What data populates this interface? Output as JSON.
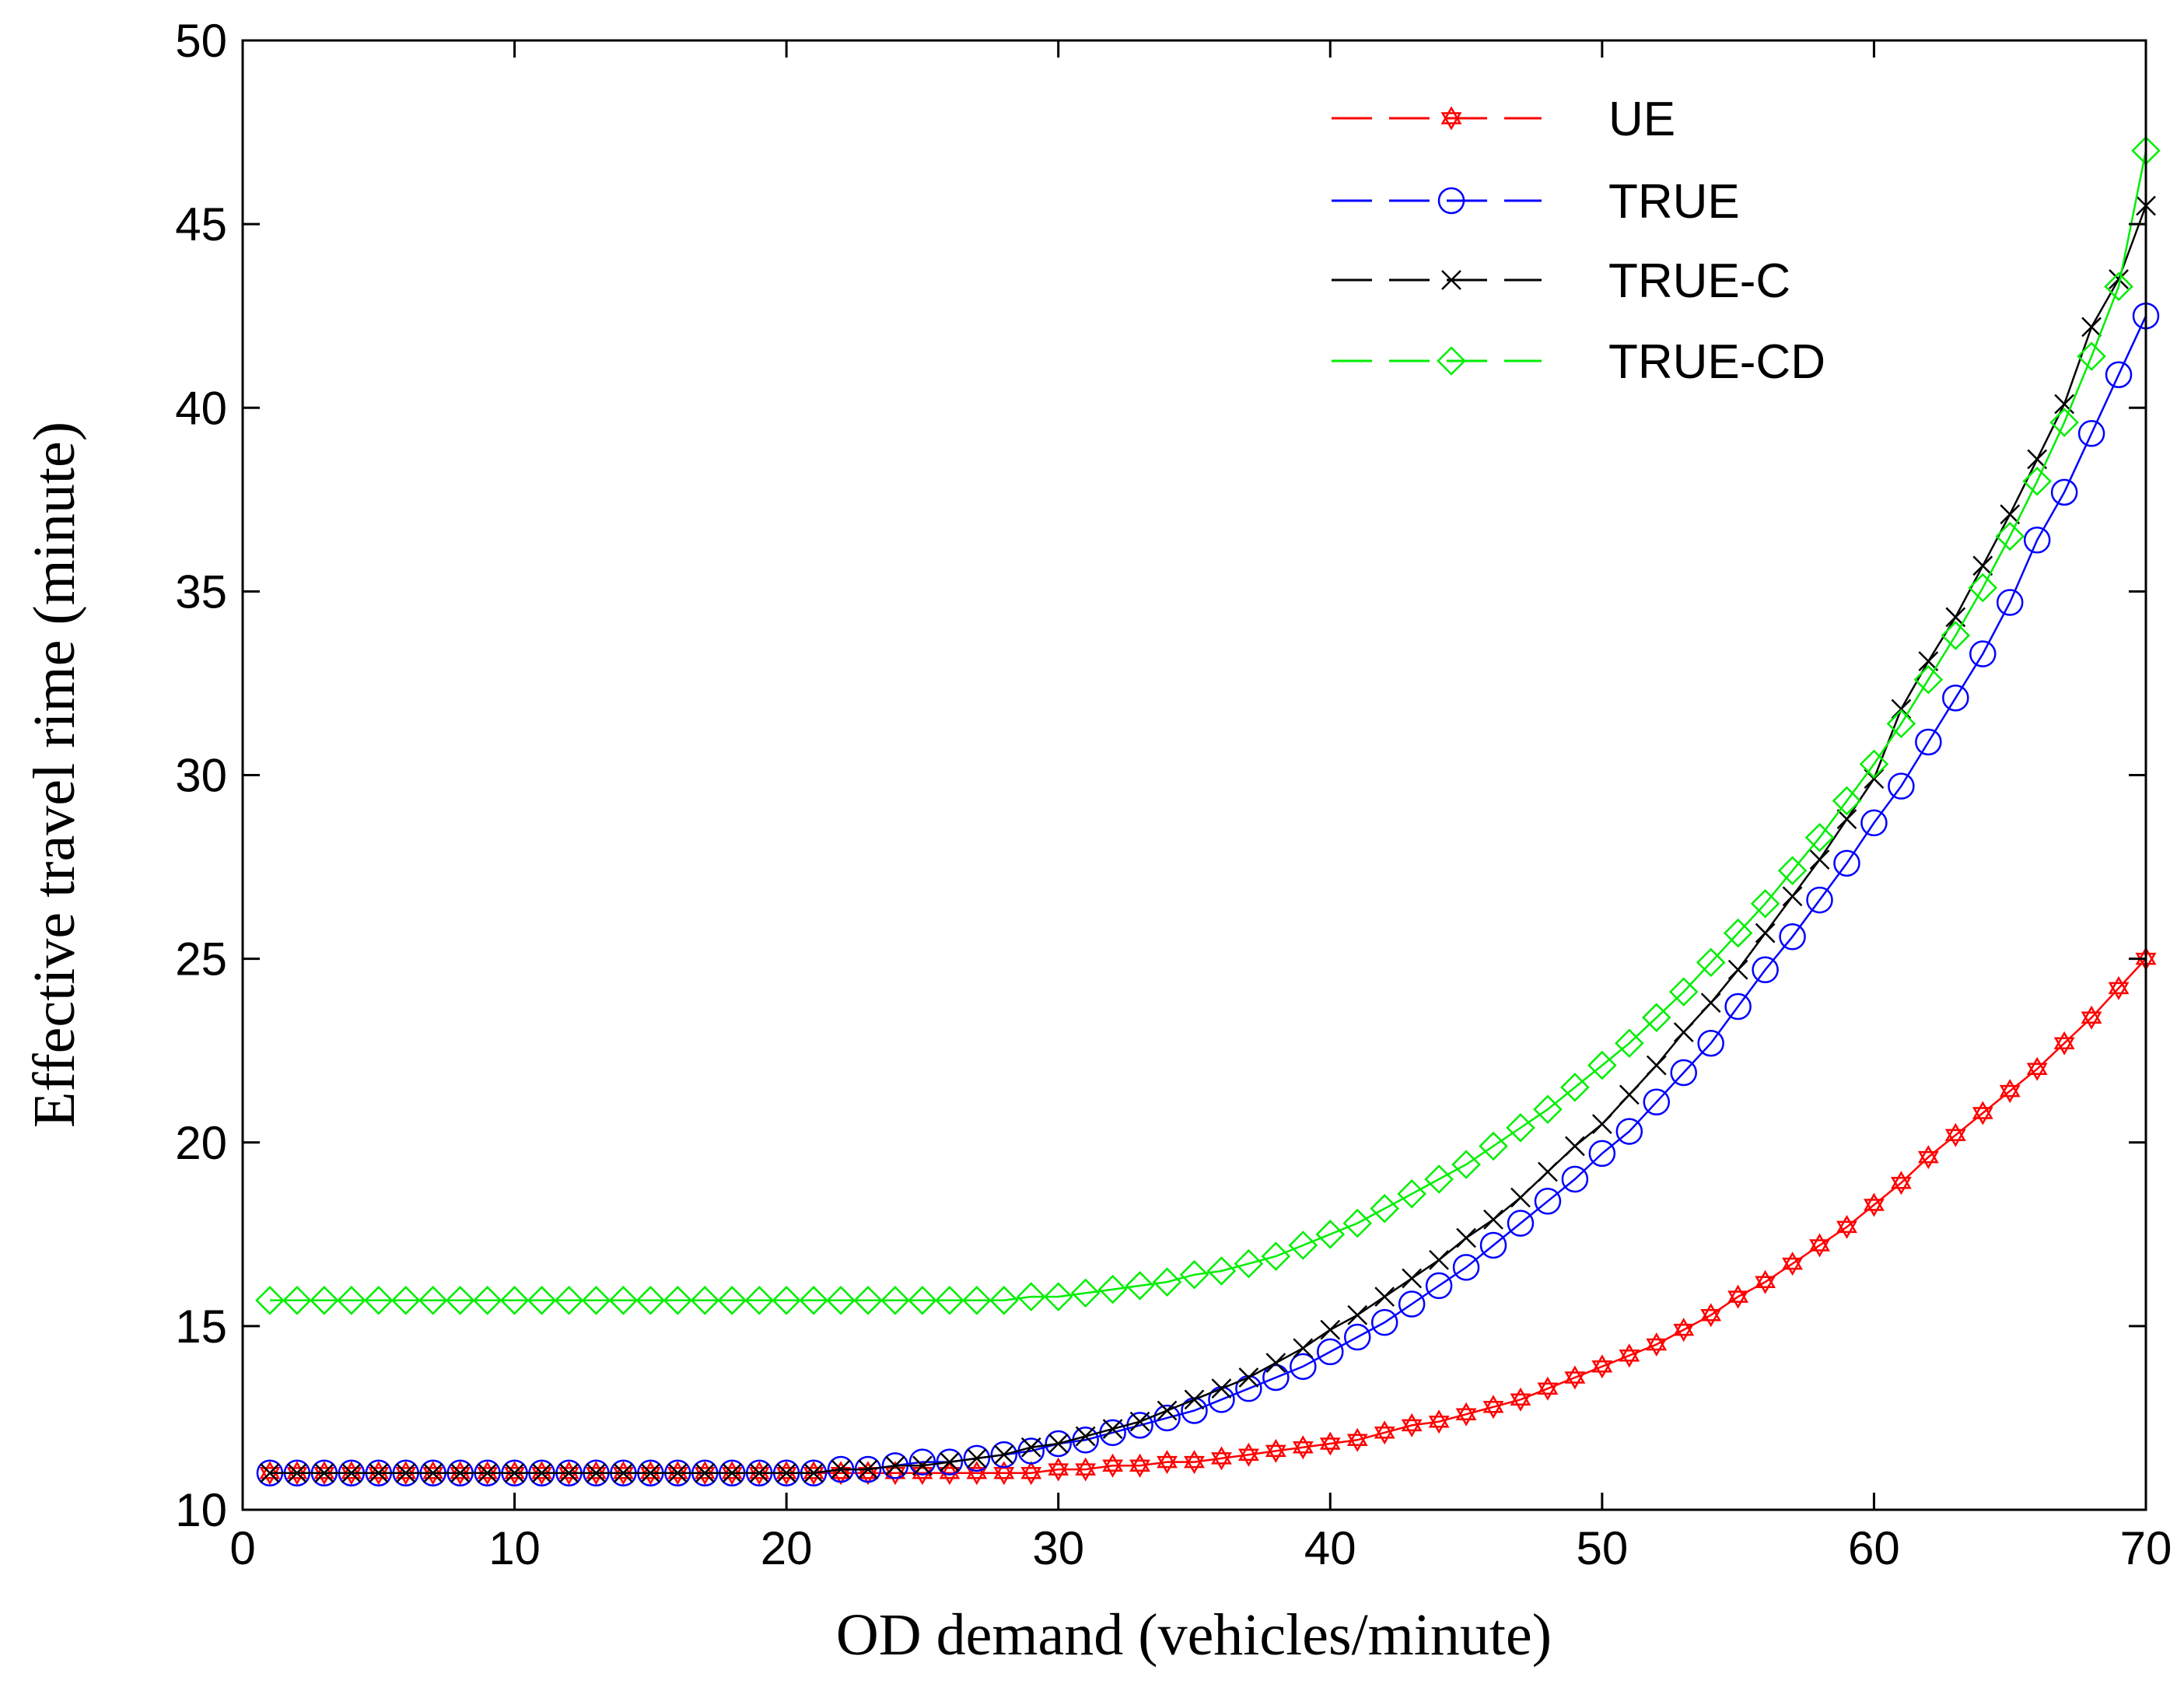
{
  "chart_data": {
    "type": "line",
    "title": "",
    "xlabel": "OD demand (vehicles/minute)",
    "ylabel": "Effective travel rime (minute)",
    "xlim": [
      0,
      70
    ],
    "ylim": [
      10,
      50
    ],
    "xticks": [
      0,
      10,
      20,
      30,
      40,
      50,
      60,
      70
    ],
    "yticks": [
      10,
      15,
      20,
      25,
      30,
      35,
      40,
      45,
      50
    ],
    "grid": false,
    "legend_position": "top-right",
    "x": [
      1,
      2,
      3,
      4,
      5,
      6,
      7,
      8,
      9,
      10,
      11,
      12,
      13,
      14,
      15,
      16,
      17,
      18,
      19,
      20,
      21,
      22,
      23,
      24,
      25,
      26,
      27,
      28,
      29,
      30,
      31,
      32,
      33,
      34,
      35,
      36,
      37,
      38,
      39,
      40,
      41,
      42,
      43,
      44,
      45,
      46,
      47,
      48,
      49,
      50,
      51,
      52,
      53,
      54,
      55,
      56,
      57,
      58,
      59,
      60,
      61,
      62,
      63,
      64,
      65,
      66,
      67,
      68,
      69,
      70
    ],
    "series": [
      {
        "name": "UE",
        "color": "#ff0000",
        "marker": "star",
        "values": [
          11,
          11,
          11,
          11,
          11,
          11,
          11,
          11,
          11,
          11,
          11,
          11,
          11,
          11,
          11,
          11,
          11,
          11,
          11,
          11,
          11,
          11,
          11,
          11,
          11,
          11,
          11,
          11,
          11,
          11.1,
          11.1,
          11.2,
          11.2,
          11.3,
          11.3,
          11.4,
          11.5,
          11.6,
          11.7,
          11.8,
          11.9,
          12.1,
          12.3,
          12.4,
          12.6,
          12.8,
          13.0,
          13.3,
          13.6,
          13.9,
          14.2,
          14.5,
          14.9,
          15.3,
          15.8,
          16.2,
          16.7,
          17.2,
          17.7,
          18.3,
          18.9,
          19.6,
          20.2,
          20.8,
          21.4,
          22.0,
          22.7,
          23.4,
          24.2,
          25.0
        ]
      },
      {
        "name": "TRUE",
        "color": "#0000ff",
        "marker": "circle",
        "values": [
          11,
          11,
          11,
          11,
          11,
          11,
          11,
          11,
          11,
          11,
          11,
          11,
          11,
          11,
          11,
          11,
          11,
          11,
          11,
          11,
          11,
          11.1,
          11.1,
          11.2,
          11.3,
          11.3,
          11.4,
          11.5,
          11.6,
          11.8,
          11.9,
          12.1,
          12.3,
          12.5,
          12.7,
          13.0,
          13.3,
          13.6,
          13.9,
          14.3,
          14.7,
          15.1,
          15.6,
          16.1,
          16.6,
          17.2,
          17.8,
          18.4,
          19.0,
          19.7,
          20.3,
          21.1,
          21.9,
          22.7,
          23.7,
          24.7,
          25.6,
          26.6,
          27.6,
          28.7,
          29.7,
          30.9,
          32.1,
          33.3,
          34.7,
          36.4,
          37.7,
          39.3,
          40.9,
          42.5
        ]
      },
      {
        "name": "TRUE-C",
        "color": "#000000",
        "marker": "x",
        "values": [
          11,
          11,
          11,
          11,
          11,
          11,
          11,
          11,
          11,
          11,
          11,
          11,
          11,
          11,
          11,
          11,
          11,
          11,
          11,
          11,
          11,
          11.1,
          11.1,
          11.2,
          11.2,
          11.3,
          11.4,
          11.5,
          11.7,
          11.8,
          12.0,
          12.2,
          12.4,
          12.7,
          13.0,
          13.3,
          13.6,
          14.0,
          14.4,
          14.9,
          15.3,
          15.8,
          16.3,
          16.8,
          17.4,
          17.9,
          18.5,
          19.2,
          19.9,
          20.5,
          21.3,
          22.1,
          23.0,
          23.8,
          24.7,
          25.7,
          26.7,
          27.7,
          28.8,
          29.9,
          31.8,
          33.1,
          34.3,
          35.7,
          37.1,
          38.6,
          40.1,
          42.2,
          43.5,
          45.5
        ]
      },
      {
        "name": "TRUE-CD",
        "color": "#00ee00",
        "marker": "diamond",
        "values": [
          15.7,
          15.7,
          15.7,
          15.7,
          15.7,
          15.7,
          15.7,
          15.7,
          15.7,
          15.7,
          15.7,
          15.7,
          15.7,
          15.7,
          15.7,
          15.7,
          15.7,
          15.7,
          15.7,
          15.7,
          15.7,
          15.7,
          15.7,
          15.7,
          15.7,
          15.7,
          15.7,
          15.7,
          15.8,
          15.8,
          15.9,
          16.0,
          16.1,
          16.2,
          16.4,
          16.5,
          16.7,
          16.9,
          17.2,
          17.5,
          17.8,
          18.2,
          18.6,
          19.0,
          19.4,
          19.9,
          20.4,
          20.9,
          21.5,
          22.1,
          22.7,
          23.4,
          24.1,
          24.9,
          25.7,
          26.5,
          27.4,
          28.3,
          29.3,
          30.3,
          31.4,
          32.6,
          33.8,
          35.1,
          36.5,
          38.0,
          39.6,
          41.4,
          43.3,
          47.0
        ]
      }
    ]
  }
}
